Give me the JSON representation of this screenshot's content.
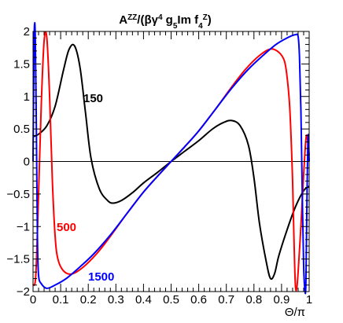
{
  "chart_data": {
    "type": "line",
    "title": "Ã^ZZ/(βγ^4 g̃_5 Im f_4^Z)",
    "xlabel": "Θ/π",
    "ylabel": "",
    "xlim": [
      0,
      1
    ],
    "ylim": [
      -2,
      2
    ],
    "x_ticks": [
      "0",
      "0.1",
      "0.2",
      "0.3",
      "0.4",
      "0.5",
      "0.6",
      "0.7",
      "0.8",
      "0.9",
      "1"
    ],
    "y_ticks": [
      "−2",
      "−1.5",
      "−1",
      "−0.5",
      "0",
      "0.5",
      "1",
      "1.5",
      "2"
    ],
    "zero_line": true,
    "series": [
      {
        "name": "150",
        "color": "#000000",
        "x": [
          0.0,
          0.02,
          0.05,
          0.08,
          0.11,
          0.13,
          0.15,
          0.17,
          0.19,
          0.21,
          0.24,
          0.27,
          0.29,
          0.32,
          0.36,
          0.4,
          0.45,
          0.5,
          0.55,
          0.6,
          0.65,
          0.69,
          0.72,
          0.75,
          0.78,
          0.8,
          0.82,
          0.845,
          0.86,
          0.875,
          0.89,
          0.92,
          0.95,
          0.98,
          1.0
        ],
        "y": [
          0.38,
          0.42,
          0.55,
          0.85,
          1.4,
          1.72,
          1.78,
          1.45,
          0.75,
          0.05,
          -0.42,
          -0.6,
          -0.64,
          -0.6,
          -0.48,
          -0.33,
          -0.17,
          0.0,
          0.16,
          0.32,
          0.5,
          0.6,
          0.63,
          0.55,
          0.25,
          -0.25,
          -0.95,
          -1.55,
          -1.8,
          -1.72,
          -1.45,
          -1.05,
          -0.7,
          -0.45,
          -0.38
        ]
      },
      {
        "name": "500",
        "color": "#ff0000",
        "x": [
          0.0,
          0.01,
          0.02,
          0.03,
          0.04,
          0.05,
          0.06,
          0.07,
          0.08,
          0.09,
          0.11,
          0.14,
          0.18,
          0.23,
          0.28,
          0.34,
          0.4,
          0.45,
          0.5,
          0.55,
          0.6,
          0.66,
          0.72,
          0.77,
          0.82,
          0.86,
          0.89,
          0.91,
          0.92,
          0.93,
          0.94,
          0.945,
          0.95,
          0.955,
          0.96,
          0.97,
          0.98,
          0.99,
          1.0
        ],
        "y": [
          -1.9,
          -1.75,
          -0.5,
          0.9,
          1.85,
          1.9,
          1.0,
          -0.3,
          -1.15,
          -1.5,
          -1.68,
          -1.73,
          -1.63,
          -1.42,
          -1.15,
          -0.8,
          -0.47,
          -0.23,
          0.0,
          0.23,
          0.47,
          0.8,
          1.15,
          1.42,
          1.63,
          1.73,
          1.68,
          1.55,
          1.3,
          0.8,
          -0.3,
          -1.2,
          -1.9,
          -1.95,
          -1.7,
          -1.0,
          -0.2,
          0.4,
          0.1
        ]
      },
      {
        "name": "1500",
        "color": "#0000ff",
        "x": [
          0.0,
          0.004,
          0.008,
          0.012,
          0.016,
          0.02,
          0.03,
          0.05,
          0.08,
          0.12,
          0.17,
          0.22,
          0.28,
          0.34,
          0.4,
          0.45,
          0.5,
          0.55,
          0.6,
          0.66,
          0.72,
          0.78,
          0.83,
          0.88,
          0.92,
          0.95,
          0.96,
          0.965,
          0.97,
          0.975,
          0.98,
          0.984,
          0.988,
          0.992,
          0.996,
          1.0
        ],
        "y": [
          0.0,
          1.9,
          1.95,
          0.5,
          -1.2,
          -1.75,
          -1.88,
          -1.95,
          -1.9,
          -1.8,
          -1.62,
          -1.42,
          -1.13,
          -0.8,
          -0.47,
          -0.23,
          0.0,
          0.23,
          0.47,
          0.8,
          1.13,
          1.42,
          1.62,
          1.8,
          1.9,
          1.95,
          1.92,
          1.6,
          0.8,
          -0.5,
          -1.6,
          -1.95,
          -1.9,
          -0.6,
          0.4,
          0.0
        ]
      }
    ]
  }
}
